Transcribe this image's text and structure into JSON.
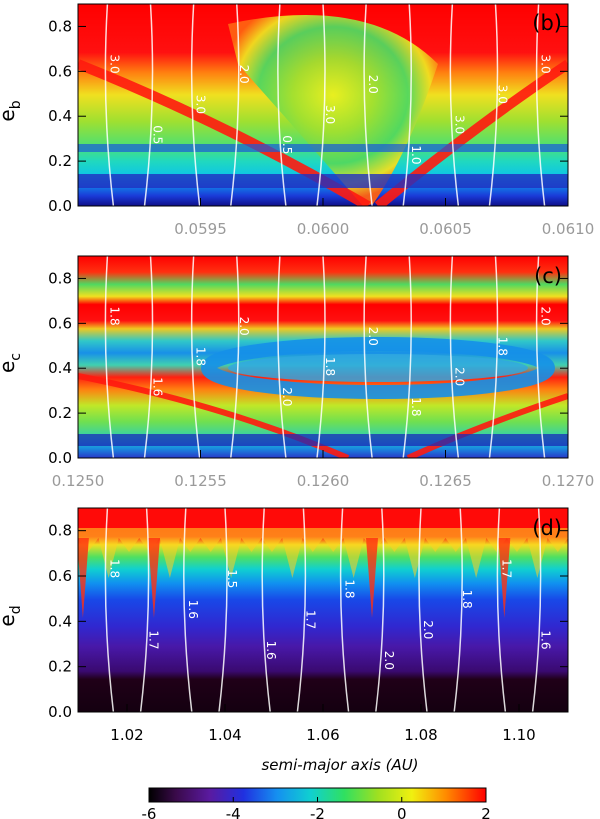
{
  "chart_data": [
    {
      "type": "heatmap",
      "panel": "(b)",
      "ylabel": "e",
      "ylabel_sub": "b",
      "xlim": [
        0.059,
        0.061
      ],
      "ylim": [
        0.0,
        0.9
      ],
      "xticks": [
        "0.0595",
        "0.0600",
        "0.0605",
        "0.0610"
      ],
      "xtick_values": [
        0.0595,
        0.06,
        0.0605,
        0.061
      ],
      "yticks": [
        "0.0",
        "0.2",
        "0.4",
        "0.6",
        "0.8"
      ],
      "ytick_values": [
        0.0,
        0.2,
        0.4,
        0.6,
        0.8
      ],
      "contour_labels": [
        "3.0",
        "0.5",
        "3.0",
        "2.0",
        "0.5",
        "3.0",
        "2.0",
        "1.0",
        "3.0",
        "3.0",
        "3.0"
      ]
    },
    {
      "type": "heatmap",
      "panel": "(c)",
      "ylabel": "e",
      "ylabel_sub": "c",
      "xlim": [
        0.125,
        0.127
      ],
      "ylim": [
        0.0,
        0.9
      ],
      "xticks": [
        "0.1250",
        "0.1255",
        "0.1260",
        "0.1265",
        "0.1270"
      ],
      "xtick_values": [
        0.125,
        0.1255,
        0.126,
        0.1265,
        0.127
      ],
      "yticks": [
        "0.0",
        "0.2",
        "0.4",
        "0.6",
        "0.8"
      ],
      "ytick_values": [
        0.0,
        0.2,
        0.4,
        0.6,
        0.8
      ],
      "contour_labels": [
        "1.8",
        "1.6",
        "1.8",
        "2.0",
        "2.0",
        "1.8",
        "2.0",
        "1.8",
        "2.0",
        "1.8",
        "2.0"
      ]
    },
    {
      "type": "heatmap",
      "panel": "(d)",
      "ylabel": "e",
      "ylabel_sub": "d",
      "xlabel": "semi-major axis (AU)",
      "xlim": [
        1.01,
        1.11
      ],
      "ylim": [
        0.0,
        0.9
      ],
      "xticks": [
        "1.02",
        "1.04",
        "1.06",
        "1.08",
        "1.10"
      ],
      "xtick_values": [
        1.02,
        1.04,
        1.06,
        1.08,
        1.1
      ],
      "yticks": [
        "0.0",
        "0.2",
        "0.4",
        "0.6",
        "0.8"
      ],
      "ytick_values": [
        0.0,
        0.2,
        0.4,
        0.6,
        0.8
      ],
      "contour_labels": [
        "1.8",
        "1.7",
        "1.6",
        "1.5",
        "1.6",
        "1.7",
        "1.8",
        "2.0",
        "2.0",
        "1.8",
        "1.7",
        "1.6"
      ]
    }
  ],
  "colorbar": {
    "range": [
      -6,
      2
    ],
    "ticks": [
      "-6",
      "-4",
      "-2",
      "0",
      "2"
    ],
    "tick_values": [
      -6,
      -4,
      -2,
      0,
      2
    ]
  }
}
